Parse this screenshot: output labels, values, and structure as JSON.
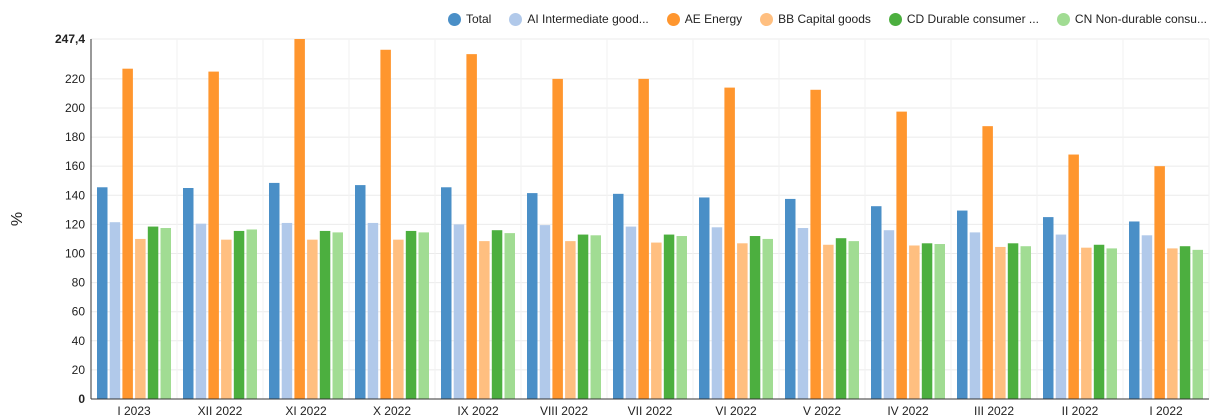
{
  "chart_data": {
    "type": "bar",
    "title": "",
    "xlabel": "",
    "ylabel": "%",
    "ylim": [
      0,
      247.4
    ],
    "yticks": [
      0,
      20,
      40,
      60,
      80,
      100,
      120,
      140,
      160,
      180,
      200,
      220
    ],
    "ymax_label": "247,4",
    "grid": true,
    "legend_position": "top-right",
    "categories": [
      "I 2023",
      "XII 2022",
      "XI 2022",
      "X 2022",
      "IX 2022",
      "VIII 2022",
      "VII 2022",
      "VI 2022",
      "V 2022",
      "IV 2022",
      "III 2022",
      "II 2022",
      "I 2022"
    ],
    "series": [
      {
        "name": "Total",
        "legend_label": "Total",
        "color": "#4a8fc7",
        "values": [
          145.5,
          145,
          148.5,
          147,
          145.5,
          141.5,
          141,
          138.5,
          137.5,
          132.5,
          129.5,
          125,
          122
        ]
      },
      {
        "name": "AI Intermediate goods",
        "legend_label": "AI Intermediate good...",
        "color": "#b1c9ea",
        "values": [
          121.5,
          120.5,
          121,
          121,
          120,
          119.5,
          118.5,
          118,
          117.5,
          116,
          114.5,
          113,
          112.5
        ]
      },
      {
        "name": "AE Energy",
        "legend_label": "AE Energy",
        "color": "#ff962e",
        "values": [
          227,
          225,
          247.4,
          240,
          237,
          220,
          220,
          214,
          212.5,
          197.5,
          187.5,
          168,
          160
        ]
      },
      {
        "name": "BB Capital goods",
        "legend_label": "BB Capital goods",
        "color": "#ffbf80",
        "values": [
          110,
          109.5,
          109.5,
          109.5,
          108.5,
          108.5,
          107.5,
          107,
          106,
          105.5,
          104.5,
          104,
          103.5
        ]
      },
      {
        "name": "CD Durable consumer goods",
        "legend_label": "CD Durable consumer ...",
        "color": "#4caf3f",
        "values": [
          118.5,
          115.5,
          115.5,
          115.5,
          116,
          113,
          113,
          112,
          110.5,
          107,
          107,
          106,
          105
        ]
      },
      {
        "name": "CN Non-durable consumer goods",
        "legend_label": "CN Non-durable consu...",
        "color": "#a1dc93",
        "values": [
          117.5,
          116.5,
          114.5,
          114.5,
          114,
          112.5,
          112,
          110,
          108.5,
          106.5,
          105,
          103.5,
          102.5
        ]
      }
    ]
  }
}
